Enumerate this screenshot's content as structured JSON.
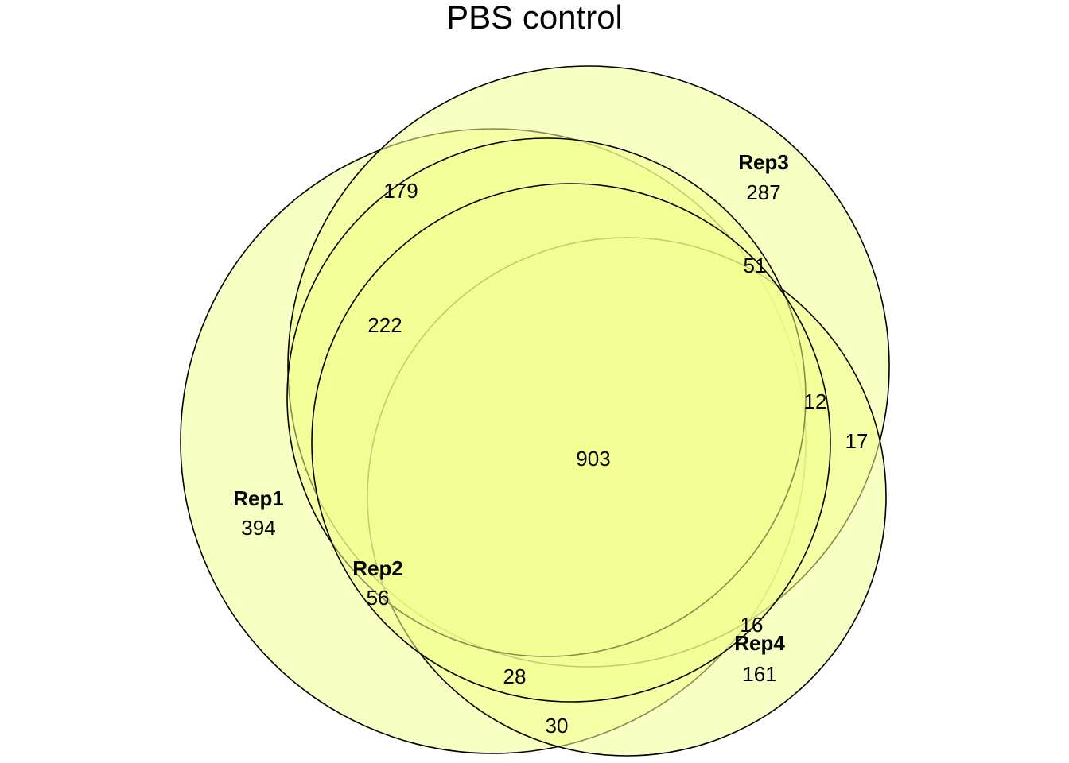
{
  "title": "PBS control",
  "fill_color": "#f3ff8f",
  "sets": [
    {
      "name": "Rep1",
      "unique_count": "394"
    },
    {
      "name": "Rep2",
      "unique_count": "56"
    },
    {
      "name": "Rep3",
      "unique_count": "287"
    },
    {
      "name": "Rep4",
      "unique_count": "161"
    }
  ],
  "intersections": {
    "rep1_rep3": "179",
    "rep1_rep2_rep3": "222",
    "rep3_rep4": "51",
    "rep2_rep3_rep4": "12",
    "rep3_rep4_outer": "17",
    "all": "903",
    "rep2_rep4": "16",
    "rep1_rep2_rep4": "28",
    "rep1_rep4": "30"
  }
}
